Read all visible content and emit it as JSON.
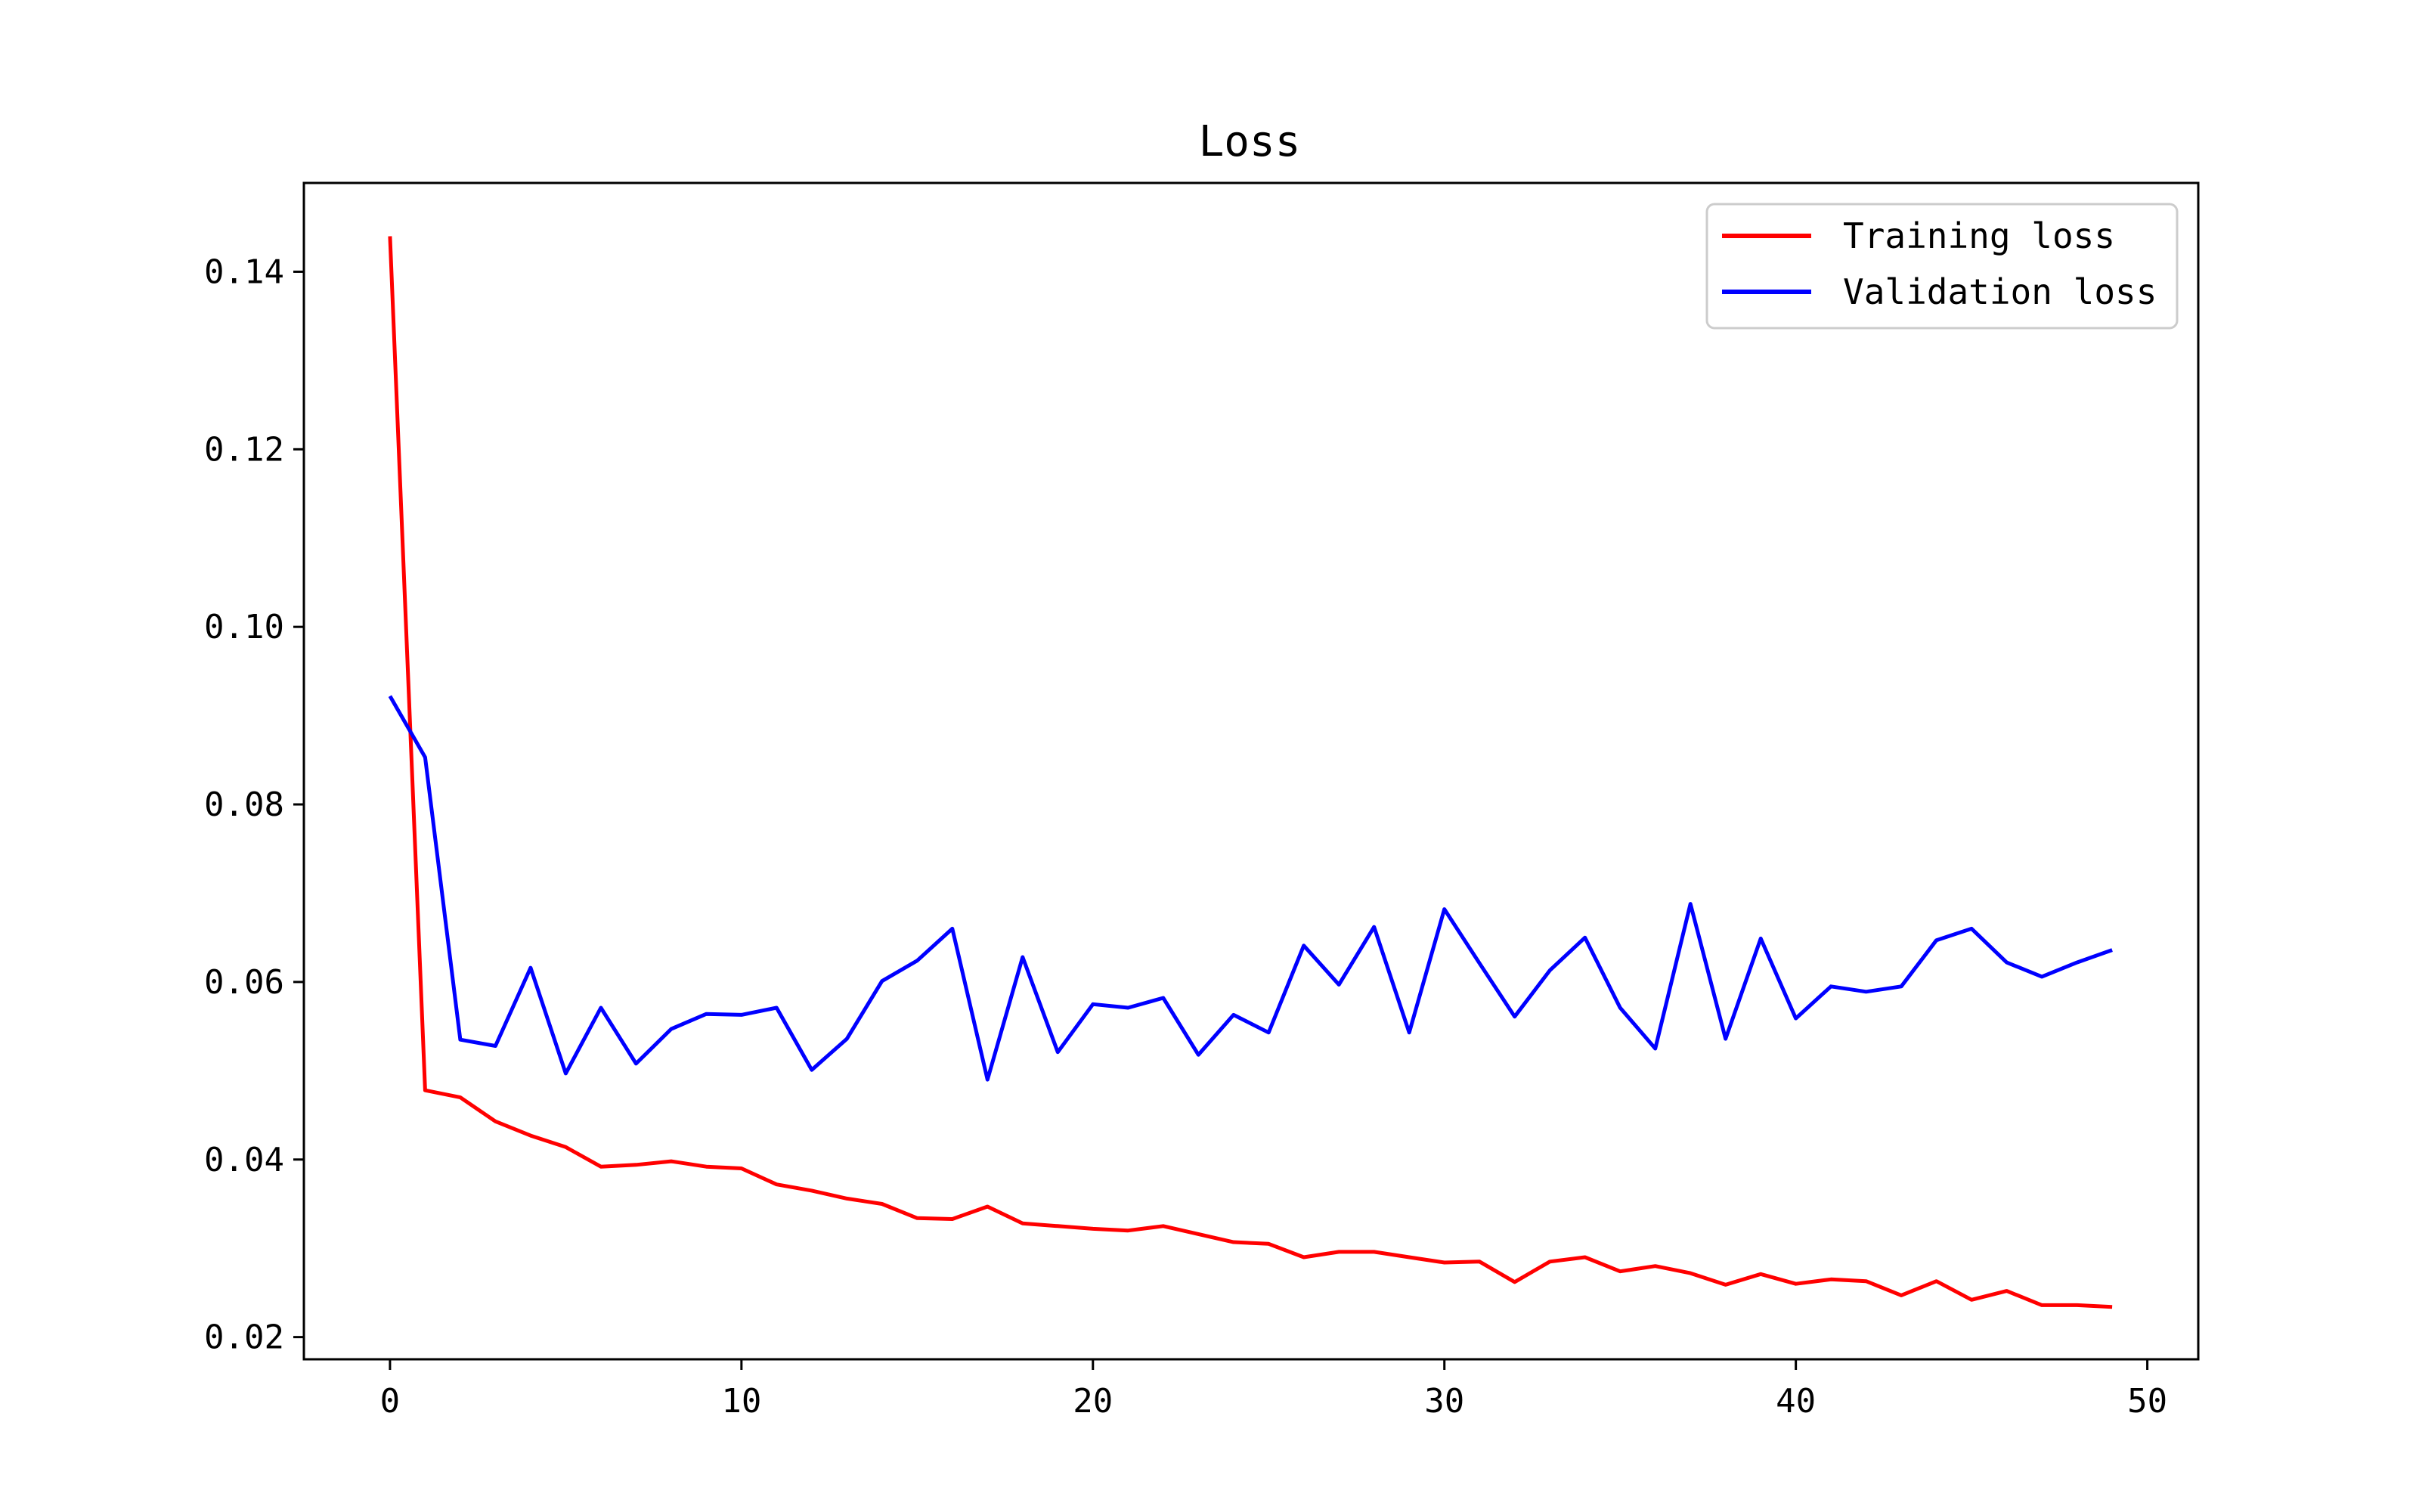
{
  "chart_data": {
    "type": "line",
    "title": "Loss",
    "xlabel": "",
    "ylabel": "",
    "xlim": [
      -2.45,
      51.45
    ],
    "ylim": [
      0.0175,
      0.15
    ],
    "xticks": [
      0,
      10,
      20,
      30,
      40,
      50
    ],
    "xtick_labels": [
      "0",
      "10",
      "20",
      "30",
      "40",
      "50"
    ],
    "yticks": [
      0.02,
      0.04,
      0.06,
      0.08,
      0.1,
      0.12,
      0.14
    ],
    "ytick_labels": [
      "0.02",
      "0.04",
      "0.06",
      "0.08",
      "0.10",
      "0.12",
      "0.14"
    ],
    "grid": false,
    "legend_position": "top-right",
    "x": [
      0,
      1,
      2,
      3,
      4,
      5,
      6,
      7,
      8,
      9,
      10,
      11,
      12,
      13,
      14,
      15,
      16,
      17,
      18,
      19,
      20,
      21,
      22,
      23,
      24,
      25,
      26,
      27,
      28,
      29,
      30,
      31,
      32,
      33,
      34,
      35,
      36,
      37,
      38,
      39,
      40,
      41,
      42,
      43,
      44,
      45,
      46,
      47,
      48,
      49
    ],
    "series": [
      {
        "name": "Training loss",
        "color": "#ff0000",
        "values": [
          0.144,
          0.0478,
          0.047,
          0.0443,
          0.0427,
          0.0414,
          0.0392,
          0.0394,
          0.0398,
          0.0392,
          0.039,
          0.0372,
          0.0365,
          0.0356,
          0.035,
          0.0334,
          0.0333,
          0.0347,
          0.0328,
          0.0325,
          0.0322,
          0.032,
          0.0325,
          0.0316,
          0.0307,
          0.0305,
          0.029,
          0.0296,
          0.0296,
          0.029,
          0.0284,
          0.0285,
          0.0262,
          0.0285,
          0.029,
          0.0274,
          0.028,
          0.0272,
          0.0259,
          0.0271,
          0.026,
          0.0265,
          0.0263,
          0.0247,
          0.0263,
          0.0242,
          0.0252,
          0.0236,
          0.0236,
          0.0234
        ]
      },
      {
        "name": "Validation loss",
        "color": "#0000ff",
        "values": [
          0.0922,
          0.0853,
          0.0535,
          0.0528,
          0.0616,
          0.0497,
          0.0571,
          0.0508,
          0.0547,
          0.0564,
          0.0563,
          0.0571,
          0.0501,
          0.0536,
          0.0601,
          0.0624,
          0.066,
          0.049,
          0.0628,
          0.0521,
          0.0575,
          0.0571,
          0.0582,
          0.0518,
          0.0563,
          0.0543,
          0.0641,
          0.0597,
          0.0662,
          0.0543,
          0.0682,
          0.0621,
          0.0561,
          0.0613,
          0.065,
          0.0571,
          0.0525,
          0.0688,
          0.0536,
          0.0649,
          0.0559,
          0.0595,
          0.0589,
          0.0595,
          0.0647,
          0.066,
          0.0622,
          0.0606,
          0.0622,
          0.0636
        ]
      }
    ]
  }
}
